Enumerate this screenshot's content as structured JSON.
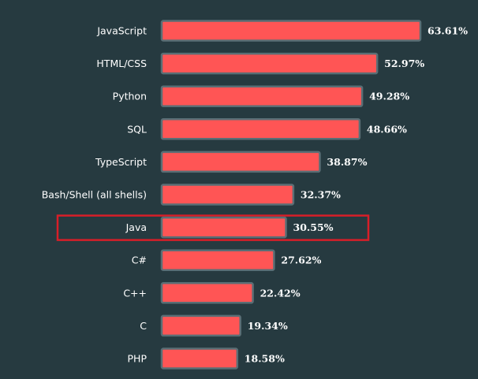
{
  "chart_data": {
    "type": "bar",
    "orientation": "horizontal",
    "categories": [
      "JavaScript",
      "HTML/CSS",
      "Python",
      "SQL",
      "TypeScript",
      "Bash/Shell (all shells)",
      "Java",
      "C#",
      "C++",
      "C",
      "PHP"
    ],
    "values": [
      63.61,
      52.97,
      49.28,
      48.66,
      38.87,
      32.37,
      30.55,
      27.62,
      22.42,
      19.34,
      18.58
    ],
    "value_labels": [
      "63.61%",
      "52.97%",
      "49.28%",
      "48.66%",
      "38.87%",
      "32.37%",
      "30.55%",
      "27.62%",
      "22.42%",
      "19.34%",
      "18.58%"
    ],
    "highlighted_category": "Java",
    "xlim": [
      0,
      63.61
    ],
    "grid": false,
    "title": "",
    "xlabel": "",
    "ylabel": ""
  },
  "colors": {
    "background": "#263a40",
    "bar_fill": "#ff5555",
    "bar_stroke": "#5a6e75",
    "highlight_stroke": "#d81e28",
    "text": "#ffffff"
  }
}
